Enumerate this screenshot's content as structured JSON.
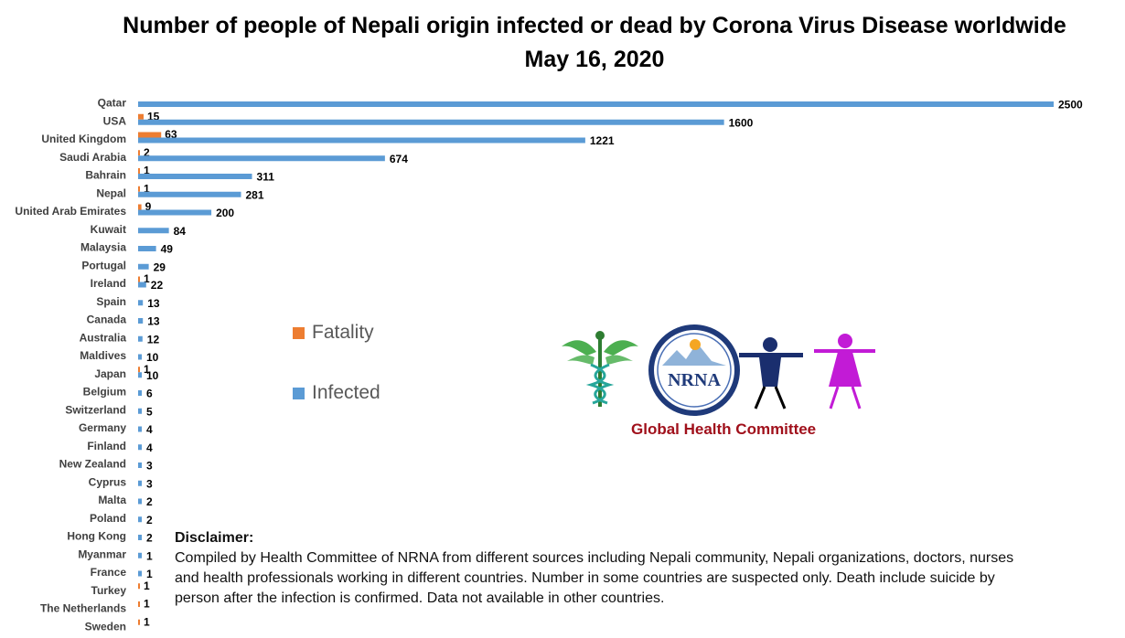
{
  "title": "Number of people of Nepali origin infected or dead by Corona Virus Disease worldwide",
  "subtitle": "May 16, 2020",
  "colors": {
    "fatality": "#ED7D31",
    "infected": "#5B9BD5",
    "ghc_text": "#A0101B"
  },
  "chart_data": {
    "type": "bar",
    "orientation": "horizontal",
    "title": "Number of people of Nepali origin infected or dead by Corona Virus Disease worldwide",
    "subtitle": "May 16, 2020",
    "legend_position": "center",
    "categories": [
      "Qatar",
      "USA",
      "United Kingdom",
      "Saudi Arabia",
      "Bahrain",
      "Nepal",
      "United Arab Emirates",
      "Kuwait",
      "Malaysia",
      "Portugal",
      "Ireland",
      "Spain",
      "Canada",
      "Australia",
      "Maldives",
      "Japan",
      "Belgium",
      "Switzerland",
      "Germany",
      "Finland",
      "New Zealand",
      "Cyprus",
      "Malta",
      "Poland",
      "Hong Kong",
      "Myanmar",
      "France",
      "Turkey",
      "The Netherlands",
      "Sweden"
    ],
    "series": [
      {
        "name": "Fatality",
        "values": [
          null,
          15,
          63,
          2,
          1,
          1,
          9,
          null,
          null,
          null,
          1,
          null,
          null,
          null,
          null,
          1,
          null,
          null,
          null,
          null,
          null,
          null,
          null,
          null,
          null,
          null,
          null,
          1,
          1,
          1
        ]
      },
      {
        "name": "Infected",
        "values": [
          2500,
          1600,
          1221,
          674,
          311,
          281,
          200,
          84,
          49,
          29,
          22,
          13,
          13,
          12,
          10,
          10,
          6,
          5,
          4,
          4,
          3,
          3,
          2,
          2,
          2,
          1,
          1,
          null,
          null,
          null
        ]
      }
    ],
    "xlim": [
      0,
      2500
    ],
    "grid": false
  },
  "logo": {
    "text": "NRNA",
    "caption": "Global Health Committee"
  },
  "disclaimer": {
    "heading": "Disclaimer:",
    "line1": "Compiled by Health Committee of NRNA from different sources including Nepali community, Nepali organizations,  doctors, nurses",
    "line2": "and health professionals working in different countries. Number in some  countries are suspected only. Death include suicide by",
    "line3": "person after the infection is confirmed. Data not available in other countries."
  }
}
